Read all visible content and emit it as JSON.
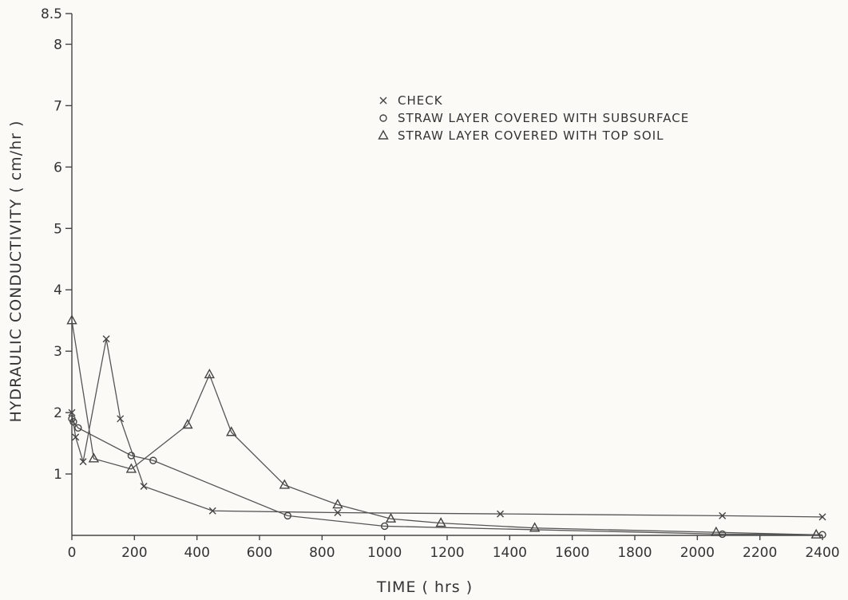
{
  "chart_data": {
    "type": "line",
    "xlabel": "TIME ( hrs )",
    "ylabel": "HYDRAULIC CONDUCTIVITY ( cm/hr )",
    "xlim": [
      0,
      2400
    ],
    "ylim": [
      0,
      8.5
    ],
    "x_ticks": [
      0,
      200,
      400,
      600,
      800,
      1000,
      1200,
      1400,
      1600,
      1800,
      2000,
      2200,
      2400
    ],
    "y_ticks": [
      1,
      2,
      3,
      4,
      5,
      6,
      7,
      8,
      8.5
    ],
    "y_tick_labels": [
      "1",
      "2",
      "3",
      "4",
      "5",
      "6",
      "7",
      "8",
      "8.5"
    ],
    "grid": false,
    "legend_position": "top-right",
    "series": [
      {
        "name": "CHECK",
        "marker": "x",
        "x": [
          0,
          12,
          36,
          110,
          155,
          230,
          450,
          850,
          1370,
          2080,
          2400
        ],
        "y": [
          2.0,
          1.6,
          1.2,
          3.2,
          1.9,
          0.8,
          0.4,
          0.37,
          0.35,
          0.32,
          0.3
        ]
      },
      {
        "name": "STRAW LAYER COVERED WITH SUBSURFACE",
        "marker": "circle",
        "x": [
          0,
          5,
          20,
          190,
          260,
          690,
          1000,
          2080,
          2400
        ],
        "y": [
          1.9,
          1.85,
          1.75,
          1.3,
          1.22,
          0.32,
          0.15,
          0.02,
          0.01
        ],
        "path_order": [
          0,
          1,
          2,
          3,
          4,
          5,
          6,
          7,
          8
        ]
      },
      {
        "name": "STRAW LAYER COVERED WITH TOP SOIL",
        "marker": "triangle",
        "x": [
          0,
          70,
          190,
          370,
          440,
          510,
          680,
          850,
          1020,
          1180,
          1480,
          2060,
          2380
        ],
        "y": [
          3.5,
          1.25,
          1.08,
          1.8,
          2.62,
          1.68,
          0.82,
          0.5,
          0.27,
          0.2,
          0.12,
          0.05,
          0.01
        ]
      }
    ]
  }
}
